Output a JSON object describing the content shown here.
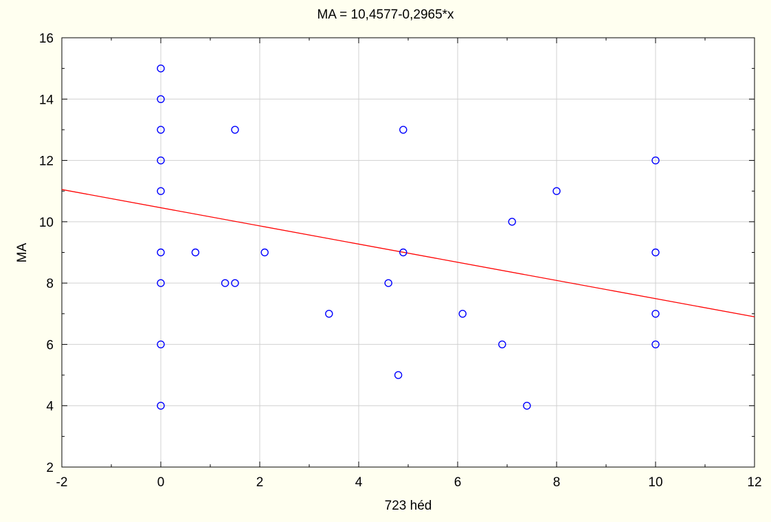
{
  "chart_data": {
    "type": "scatter",
    "title": "MA = 10,4577-0,2965*x",
    "xlabel": "723 héd",
    "ylabel": "MA",
    "xlim": [
      -2,
      12
    ],
    "ylim": [
      2,
      16
    ],
    "xticks": [
      -2,
      0,
      2,
      4,
      6,
      8,
      10,
      12
    ],
    "yticks": [
      2,
      4,
      6,
      8,
      10,
      12,
      14,
      16
    ],
    "grid": true,
    "points": [
      {
        "x": 0,
        "y": 15
      },
      {
        "x": 0,
        "y": 14
      },
      {
        "x": 0,
        "y": 13
      },
      {
        "x": 0,
        "y": 12
      },
      {
        "x": 0,
        "y": 11
      },
      {
        "x": 0,
        "y": 9
      },
      {
        "x": 0,
        "y": 8
      },
      {
        "x": 0,
        "y": 6
      },
      {
        "x": 0,
        "y": 4
      },
      {
        "x": 0.7,
        "y": 9
      },
      {
        "x": 1.3,
        "y": 8
      },
      {
        "x": 1.5,
        "y": 8
      },
      {
        "x": 1.5,
        "y": 13
      },
      {
        "x": 2.1,
        "y": 9
      },
      {
        "x": 3.4,
        "y": 7
      },
      {
        "x": 4.6,
        "y": 8
      },
      {
        "x": 4.8,
        "y": 5
      },
      {
        "x": 4.9,
        "y": 13
      },
      {
        "x": 4.9,
        "y": 9
      },
      {
        "x": 6.1,
        "y": 7
      },
      {
        "x": 6.9,
        "y": 6
      },
      {
        "x": 7.1,
        "y": 10
      },
      {
        "x": 7.4,
        "y": 4
      },
      {
        "x": 8,
        "y": 11
      },
      {
        "x": 10,
        "y": 12
      },
      {
        "x": 10,
        "y": 9
      },
      {
        "x": 10,
        "y": 7
      },
      {
        "x": 10,
        "y": 6
      }
    ],
    "regression": {
      "intercept": 10.4577,
      "slope": -0.2965
    },
    "colors": {
      "points": "#0000ff",
      "line": "#ff0000",
      "grid": "#d0d0d0",
      "background": "#fffff0",
      "plot_bg": "#ffffff"
    }
  }
}
